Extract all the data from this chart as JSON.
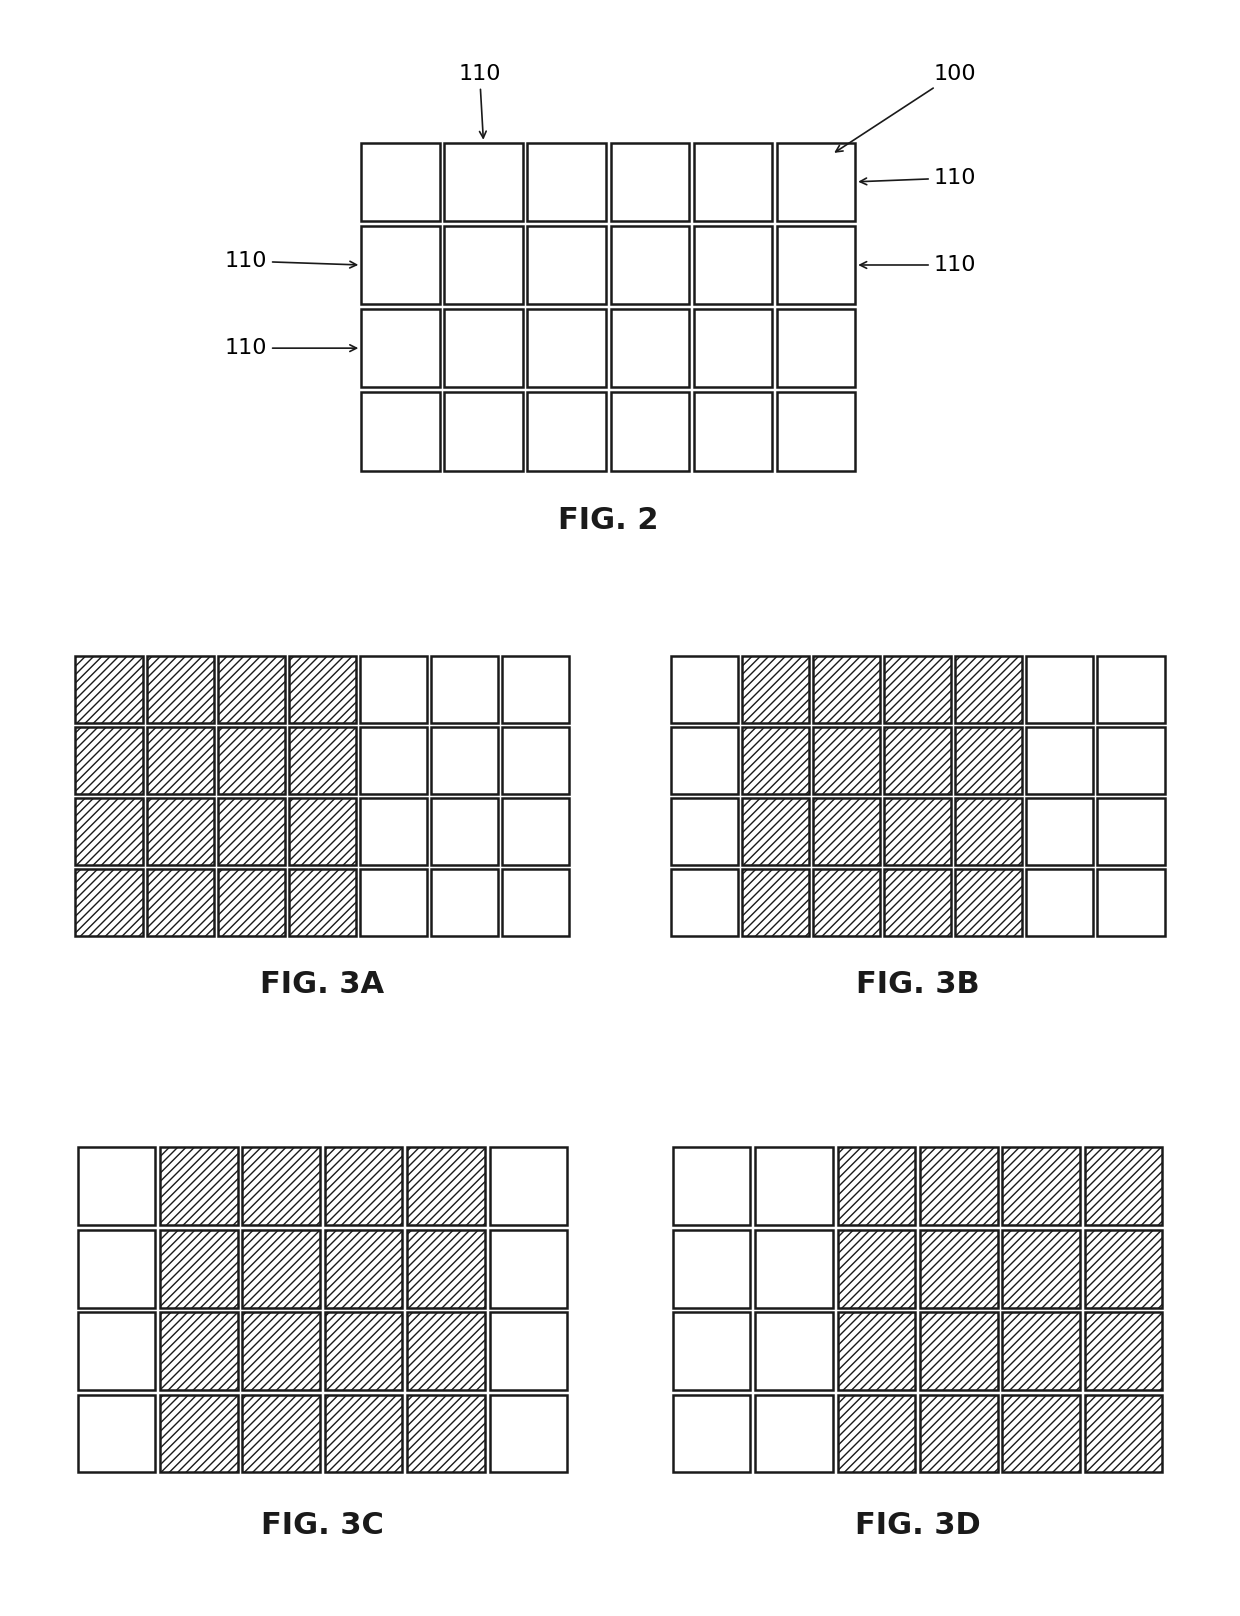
{
  "fig2": {
    "cols": 6,
    "rows": 4,
    "label": "FIG. 2",
    "hatched_cols": []
  },
  "fig3a": {
    "cols": 7,
    "rows": 4,
    "label": "FIG. 3A",
    "hatched_cols": [
      0,
      1,
      2,
      3
    ]
  },
  "fig3b": {
    "cols": 7,
    "rows": 4,
    "label": "FIG. 3B",
    "hatched_cols": [
      1,
      2,
      3,
      4
    ]
  },
  "fig3c": {
    "cols": 6,
    "rows": 4,
    "label": "FIG. 3C",
    "hatched_cols": [
      1,
      2,
      3,
      4
    ]
  },
  "fig3d": {
    "cols": 6,
    "rows": 4,
    "label": "FIG. 3D",
    "hatched_cols": [
      2,
      3,
      4,
      5
    ]
  },
  "bg_color": "#ffffff",
  "edge_color": "#1a1a1a",
  "hatch_pattern": "////",
  "cell_lw": 1.8,
  "fig_label_fontsize": 22,
  "fig_label_fontweight": "bold",
  "annotation_fontsize": 16
}
